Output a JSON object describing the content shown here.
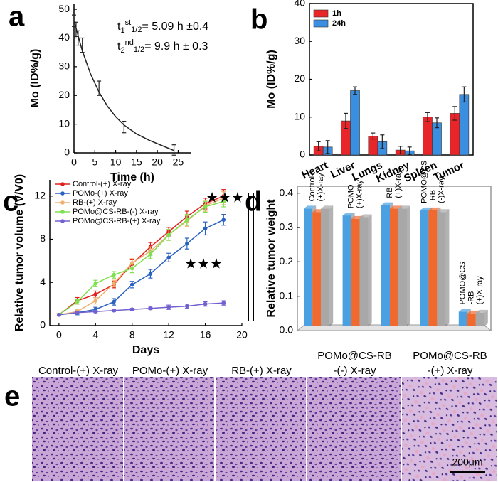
{
  "chart_data": [
    {
      "type": "scatter",
      "panel": "a",
      "xlabel": "Time (h)",
      "ylabel": "Mo (ID%/g)",
      "x": [
        0,
        0.5,
        1,
        2,
        6,
        12,
        24
      ],
      "values": [
        46,
        43,
        40,
        37.5,
        22.5,
        9,
        1
      ],
      "errors": [
        2,
        2.5,
        2.5,
        2.5,
        2.5,
        2,
        1.8
      ],
      "fit": {
        "x": [
          0,
          2,
          4,
          6,
          8,
          10,
          12,
          15,
          18,
          21,
          24
        ],
        "values": [
          46,
          35.5,
          27.4,
          21.2,
          16.3,
          12.6,
          9.7,
          6.6,
          4.4,
          2.6,
          0.8
        ]
      },
      "color": "#222222",
      "xlim": [
        0,
        28
      ],
      "xticks": [
        0,
        5,
        10,
        15,
        20,
        25
      ],
      "ylim": [
        0,
        52
      ],
      "yticks": [
        0,
        10,
        20,
        30,
        40,
        50
      ],
      "annotations": [
        {
          "t": "t",
          "n": "1",
          "ord": "st",
          "half": "1/2",
          "text": "= 5.09 h ±0.4"
        },
        {
          "t": "t",
          "n": "2",
          "ord": "nd",
          "half": "1/2",
          "text": "= 9.9 h ± 0.3"
        }
      ]
    },
    {
      "type": "bar",
      "panel": "b",
      "ylabel": "Mo (ID%/g)",
      "legend": "upper-left",
      "categories": [
        "Heart",
        "Liver",
        "Lungs",
        "Kidney",
        "Spleen",
        "Tumor"
      ],
      "series": [
        {
          "name": "1h",
          "color": "#e8262a",
          "values": [
            2.3,
            9,
            5,
            1.3,
            10,
            11
          ],
          "errors": [
            1.2,
            2,
            0.8,
            1,
            1.2,
            1.8
          ]
        },
        {
          "name": "24h",
          "color": "#3b8fe0",
          "values": [
            2.1,
            17,
            3.5,
            1.1,
            8.5,
            16
          ],
          "errors": [
            1.7,
            1,
            1.8,
            1,
            1.3,
            2
          ]
        }
      ],
      "ylim": [
        0,
        40
      ],
      "yticks": [
        0,
        10,
        20,
        30,
        40
      ]
    },
    {
      "type": "line",
      "panel": "c",
      "xlabel": "Days",
      "ylabel": "Relative tumor volume (V/V0)",
      "legend": "upper-left",
      "x": [
        0,
        2,
        4,
        6,
        8,
        10,
        12,
        14,
        16,
        18
      ],
      "series": [
        {
          "name": "Control-(+) X-ray",
          "color": "#e0201e",
          "values": [
            1,
            2.3,
            2.9,
            3.8,
            5.7,
            7.3,
            8.7,
            10.1,
            11.3,
            12
          ],
          "errors": [
            0.1,
            0.3,
            0.3,
            0.3,
            0.4,
            0.4,
            0.4,
            0.5,
            0.5,
            0.6
          ]
        },
        {
          "name": "POMo-(+) X-ray",
          "color": "#2a62c0",
          "values": [
            1,
            1.2,
            1.5,
            2.2,
            3.8,
            4.8,
            6.3,
            7.6,
            9,
            9.8
          ],
          "errors": [
            0.1,
            0.2,
            0.2,
            0.3,
            0.3,
            0.4,
            0.4,
            0.5,
            0.6,
            0.5
          ]
        },
        {
          "name": "RB-(+) X-ray",
          "color": "#f0b070",
          "values": [
            1,
            1.3,
            2.3,
            3.9,
            5.8,
            6.9,
            8.4,
            9.7,
            11.1,
            11.8
          ],
          "errors": [
            0.1,
            0.2,
            0.3,
            0.3,
            0.4,
            0.4,
            0.5,
            0.5,
            0.5,
            0.6
          ]
        },
        {
          "name": "POMo@CS-RB-(-) X-ray",
          "color": "#80e050",
          "values": [
            1,
            2.2,
            3.9,
            4.7,
            5.3,
            6.6,
            8.4,
            9.8,
            11,
            11.5
          ],
          "errors": [
            0.1,
            0.2,
            0.3,
            0.3,
            0.4,
            0.4,
            0.5,
            0.5,
            0.5,
            0.5
          ]
        },
        {
          "name": "POMo@CS-RB-(+) X-ray",
          "color": "#7060d0",
          "values": [
            1,
            1.2,
            1.3,
            1.4,
            1.5,
            1.6,
            1.7,
            1.8,
            2,
            2.1
          ],
          "errors": [
            0.1,
            0.1,
            0.1,
            0.1,
            0.1,
            0.1,
            0.2,
            0.2,
            0.2,
            0.2
          ]
        }
      ],
      "xlim": [
        -1,
        20
      ],
      "xticks": [
        0,
        4,
        8,
        12,
        16,
        20
      ],
      "ylim": [
        0,
        13.5
      ],
      "yticks": [
        0,
        4,
        8,
        12
      ],
      "annotations": [
        "★★★",
        "★★★"
      ]
    },
    {
      "type": "bar3d",
      "panel": "d",
      "ylabel": "Relative tumor weight",
      "categories": [
        [
          "Control-",
          "(+)X-ray"
        ],
        [
          "POMO-",
          "(+)X-ray"
        ],
        [
          "RB",
          "(+)X-ray"
        ],
        [
          "POMO@CS",
          "-RB",
          "(-)X-ray"
        ],
        [
          "POMO@CS",
          "-RB",
          "(+)X-ray"
        ]
      ],
      "series": [
        {
          "color": "#4aa0e0",
          "values": [
            0.355,
            0.335,
            0.365,
            0.35,
            0.055
          ]
        },
        {
          "color": "#f06a30",
          "values": [
            0.345,
            0.325,
            0.355,
            0.35,
            0.05
          ]
        },
        {
          "color": "#a8a8a8",
          "values": [
            0.355,
            0.33,
            0.355,
            0.345,
            0.052
          ]
        }
      ],
      "ylim": [
        0,
        0.42
      ],
      "yticks": [
        {
          "value": 0,
          "label": "0.0"
        },
        0.1,
        0.2,
        0.3,
        0.4
      ]
    }
  ],
  "images": {
    "panel": "e",
    "labels": [
      [
        "Control-(+) X-ray"
      ],
      [
        "POMo-(+) X-ray"
      ],
      [
        "RB-(+) X-ray"
      ],
      [
        "POMo@CS-RB",
        "-(-) X-ray"
      ],
      [
        "POMo@CS-RB",
        "-(+) X-ray"
      ]
    ],
    "scale_bar": "200μm"
  }
}
